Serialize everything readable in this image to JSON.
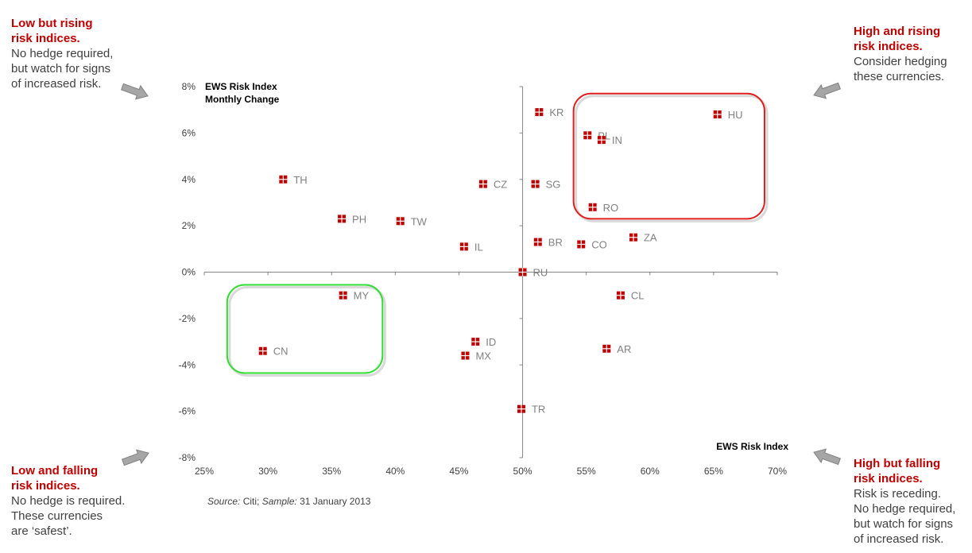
{
  "notes": {
    "top_left": {
      "head": [
        "Low but rising",
        "risk indices."
      ],
      "body": [
        "No hedge required,",
        "but watch for signs",
        "of increased risk."
      ]
    },
    "top_right": {
      "head": [
        "High and rising",
        "risk indices."
      ],
      "body": [
        "Consider hedging",
        "these currencies."
      ]
    },
    "bottom_left": {
      "head": [
        "Low and falling",
        "risk indices."
      ],
      "body": [
        "No hedge is required.",
        "These currencies",
        "are ‘safest’."
      ]
    },
    "bottom_right": {
      "head": [
        "High but falling",
        "risk indices."
      ],
      "body": [
        "Risk is receding.",
        "No hedge required,",
        "but watch for signs",
        "of increased risk."
      ]
    }
  },
  "source": {
    "label": "Source:",
    "text": " Citi; ",
    "sample_label": "Sample:",
    "sample_text": " 31 January 2013"
  },
  "colors": {
    "marker": "#c00000",
    "high_risk_box": "#e02020",
    "safe_box": "#33dd33",
    "arrow": "#a6a6a6",
    "axis": "#868686"
  },
  "chart_data": {
    "type": "scatter",
    "xlabel": "EWS Risk Index",
    "ylabel": [
      "EWS Risk Index",
      "Monthly Change"
    ],
    "xlim": [
      0.25,
      0.7
    ],
    "ylim": [
      -0.08,
      0.08
    ],
    "x_ticks": [
      0.25,
      0.3,
      0.35,
      0.4,
      0.45,
      0.5,
      0.55,
      0.6,
      0.65,
      0.7
    ],
    "x_tick_labels": [
      "25%",
      "30%",
      "35%",
      "40%",
      "45%",
      "50%",
      "55%",
      "60%",
      "65%",
      "70%"
    ],
    "y_ticks": [
      0.08,
      0.06,
      0.04,
      0.02,
      0.0,
      -0.02,
      -0.04,
      -0.06,
      -0.08
    ],
    "y_tick_labels": [
      "8%",
      "6%",
      "4%",
      "2%",
      "0%",
      "-2%",
      "-4%",
      "-6%",
      "-8%"
    ],
    "axes_cross_at": {
      "x": 0.5,
      "y": 0.0
    },
    "grid": false,
    "points": [
      {
        "label": "KR",
        "x": 0.513,
        "y": 0.069
      },
      {
        "label": "HU",
        "x": 0.653,
        "y": 0.068
      },
      {
        "label": "PL",
        "x": 0.551,
        "y": 0.059
      },
      {
        "label": "IN",
        "x": 0.562,
        "y": 0.057
      },
      {
        "label": "TH",
        "x": 0.312,
        "y": 0.04
      },
      {
        "label": "CZ",
        "x": 0.469,
        "y": 0.038
      },
      {
        "label": "SG",
        "x": 0.51,
        "y": 0.038
      },
      {
        "label": "RO",
        "x": 0.555,
        "y": 0.028
      },
      {
        "label": "PH",
        "x": 0.358,
        "y": 0.023
      },
      {
        "label": "TW",
        "x": 0.404,
        "y": 0.022
      },
      {
        "label": "ZA",
        "x": 0.587,
        "y": 0.015
      },
      {
        "label": "BR",
        "x": 0.512,
        "y": 0.013
      },
      {
        "label": "CO",
        "x": 0.546,
        "y": 0.012
      },
      {
        "label": "IL",
        "x": 0.454,
        "y": 0.011
      },
      {
        "label": "RU",
        "x": 0.5,
        "y": 0.0
      },
      {
        "label": "MY",
        "x": 0.359,
        "y": -0.01
      },
      {
        "label": "CL",
        "x": 0.577,
        "y": -0.01
      },
      {
        "label": "ID",
        "x": 0.463,
        "y": -0.03
      },
      {
        "label": "AR",
        "x": 0.566,
        "y": -0.033
      },
      {
        "label": "CN",
        "x": 0.296,
        "y": -0.034
      },
      {
        "label": "MX",
        "x": 0.455,
        "y": -0.036
      },
      {
        "label": "TR",
        "x": 0.499,
        "y": -0.059
      }
    ],
    "highlight_boxes": [
      {
        "name": "high-and-rising",
        "x_range": [
          0.54,
          0.69
        ],
        "y_range": [
          0.023,
          0.077
        ],
        "color": "high_risk_box"
      },
      {
        "name": "low-and-falling",
        "x_range": [
          0.268,
          0.39
        ],
        "y_range": [
          -0.0435,
          -0.0055
        ],
        "color": "safe_box"
      }
    ]
  }
}
